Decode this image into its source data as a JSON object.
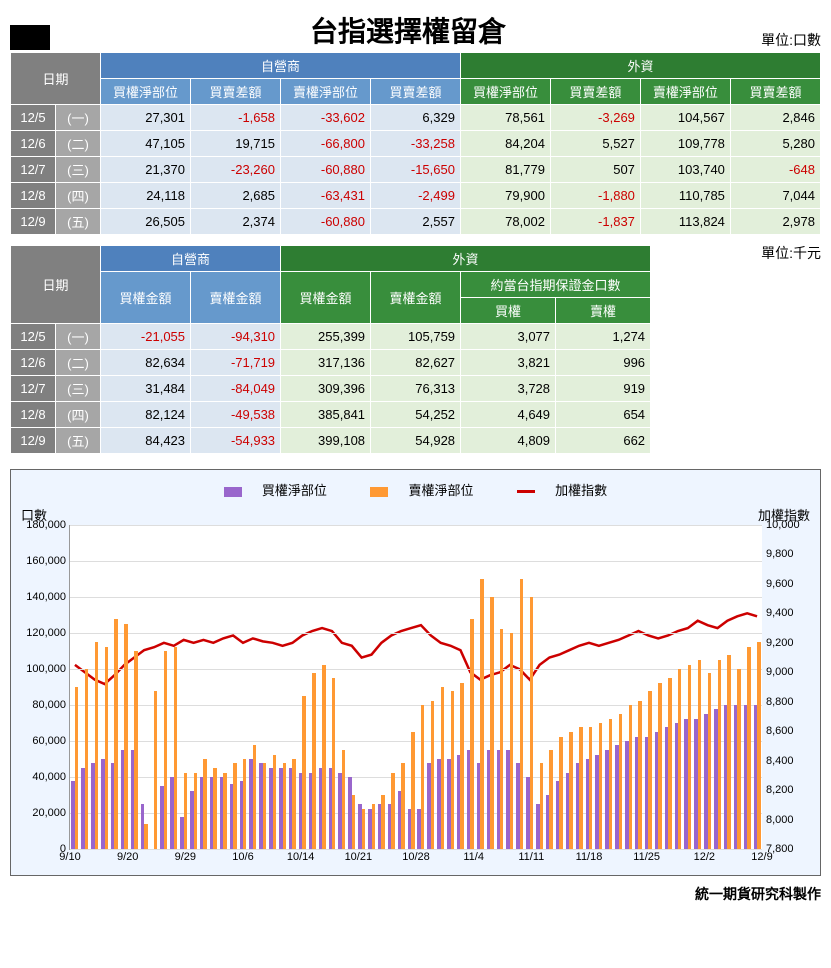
{
  "title": "台指選擇權留倉",
  "unit1": "單位:口數",
  "unit2": "單位:千元",
  "footer": "統一期貨研究科製作",
  "t1": {
    "h": {
      "date": "日期",
      "dealer": "自營商",
      "foreign": "外資",
      "c1": "買權淨部位",
      "c2": "買賣差額",
      "c3": "賣權淨部位",
      "c4": "買賣差額",
      "c5": "買權淨部位",
      "c6": "買賣差額",
      "c7": "賣權淨部位",
      "c8": "買賣差額"
    },
    "rows": [
      {
        "d1": "12/5",
        "d2": "(一)",
        "v": [
          "27,301",
          "-1,658",
          "-33,602",
          "6,329",
          "78,561",
          "-3,269",
          "104,567",
          "2,846"
        ]
      },
      {
        "d1": "12/6",
        "d2": "(二)",
        "v": [
          "47,105",
          "19,715",
          "-66,800",
          "-33,258",
          "84,204",
          "5,527",
          "109,778",
          "5,280"
        ]
      },
      {
        "d1": "12/7",
        "d2": "(三)",
        "v": [
          "21,370",
          "-23,260",
          "-60,880",
          "-15,650",
          "81,779",
          "507",
          "103,740",
          "-648"
        ]
      },
      {
        "d1": "12/8",
        "d2": "(四)",
        "v": [
          "24,118",
          "2,685",
          "-63,431",
          "-2,499",
          "79,900",
          "-1,880",
          "110,785",
          "7,044"
        ]
      },
      {
        "d1": "12/9",
        "d2": "(五)",
        "v": [
          "26,505",
          "2,374",
          "-60,880",
          "2,557",
          "78,002",
          "-1,837",
          "113,824",
          "2,978"
        ]
      }
    ]
  },
  "t2": {
    "h": {
      "date": "日期",
      "dealer": "自營商",
      "foreign": "外資",
      "c1": "買權金額",
      "c2": "賣權金額",
      "c3": "買權金額",
      "c4": "賣權金額",
      "margin": "約當台指期保證金口數",
      "c5": "買權",
      "c6": "賣權"
    },
    "rows": [
      {
        "d1": "12/5",
        "d2": "(一)",
        "v": [
          "-21,055",
          "-94,310",
          "255,399",
          "105,759",
          "3,077",
          "1,274"
        ]
      },
      {
        "d1": "12/6",
        "d2": "(二)",
        "v": [
          "82,634",
          "-71,719",
          "317,136",
          "82,627",
          "3,821",
          "996"
        ]
      },
      {
        "d1": "12/7",
        "d2": "(三)",
        "v": [
          "31,484",
          "-84,049",
          "309,396",
          "76,313",
          "3,728",
          "919"
        ]
      },
      {
        "d1": "12/8",
        "d2": "(四)",
        "v": [
          "82,124",
          "-49,538",
          "385,841",
          "54,252",
          "4,649",
          "654"
        ]
      },
      {
        "d1": "12/9",
        "d2": "(五)",
        "v": [
          "84,423",
          "-54,933",
          "399,108",
          "54,928",
          "4,809",
          "662"
        ]
      }
    ]
  },
  "chart": {
    "legend": {
      "a": "買權淨部位",
      "b": "賣權淨部位",
      "c": "加權指數"
    },
    "ylabel_l": "口數",
    "ylabel_r": "加權指數",
    "colors": {
      "purple": "#9966cc",
      "orange": "#ff9933",
      "red": "#cc0000"
    },
    "yl": {
      "min": 0,
      "max": 180000,
      "step": 20000
    },
    "yr": {
      "min": 7800,
      "max": 10000,
      "step": 200
    },
    "xlabels": [
      "9/10",
      "9/20",
      "9/29",
      "10/6",
      "10/14",
      "10/21",
      "10/28",
      "11/4",
      "11/11",
      "11/18",
      "11/25",
      "12/2",
      "12/9"
    ],
    "series": {
      "purple": [
        38,
        45,
        48,
        50,
        48,
        55,
        55,
        25,
        0,
        35,
        40,
        18,
        32,
        40,
        40,
        40,
        36,
        38,
        50,
        48,
        45,
        45,
        45,
        42,
        42,
        45,
        45,
        42,
        40,
        25,
        22,
        25,
        25,
        32,
        22,
        22,
        48,
        50,
        50,
        52,
        55,
        48,
        55,
        55,
        55,
        48,
        40,
        25,
        30,
        38,
        42,
        48,
        50,
        52,
        55,
        58,
        60,
        62,
        62,
        65,
        68,
        70,
        72,
        72,
        75,
        78,
        80,
        80,
        80,
        80
      ],
      "orange": [
        90,
        100,
        115,
        112,
        128,
        125,
        110,
        14,
        88,
        110,
        112,
        42,
        42,
        50,
        45,
        42,
        48,
        50,
        58,
        48,
        52,
        48,
        50,
        85,
        98,
        102,
        95,
        55,
        30,
        22,
        25,
        30,
        42,
        48,
        65,
        80,
        82,
        90,
        88,
        92,
        128,
        150,
        140,
        122,
        120,
        150,
        140,
        48,
        55,
        62,
        65,
        68,
        68,
        70,
        72,
        75,
        80,
        82,
        88,
        92,
        95,
        100,
        102,
        105,
        98,
        105,
        108,
        100,
        112,
        115
      ],
      "line": [
        9050,
        9000,
        8950,
        8920,
        8980,
        9050,
        9100,
        9150,
        9170,
        9200,
        9180,
        9220,
        9200,
        9220,
        9200,
        9230,
        9250,
        9200,
        9230,
        9210,
        9200,
        9180,
        9200,
        9250,
        9280,
        9300,
        9280,
        9200,
        9180,
        9100,
        9120,
        9200,
        9250,
        9280,
        9300,
        9320,
        9250,
        9200,
        9180,
        9150,
        9000,
        8950,
        8980,
        9000,
        9050,
        9020,
        8950,
        9050,
        9100,
        9120,
        9150,
        9180,
        9200,
        9180,
        9200,
        9220,
        9250,
        9280,
        9250,
        9230,
        9250,
        9280,
        9300,
        9350,
        9320,
        9300,
        9350,
        9380,
        9400,
        9380
      ]
    }
  }
}
